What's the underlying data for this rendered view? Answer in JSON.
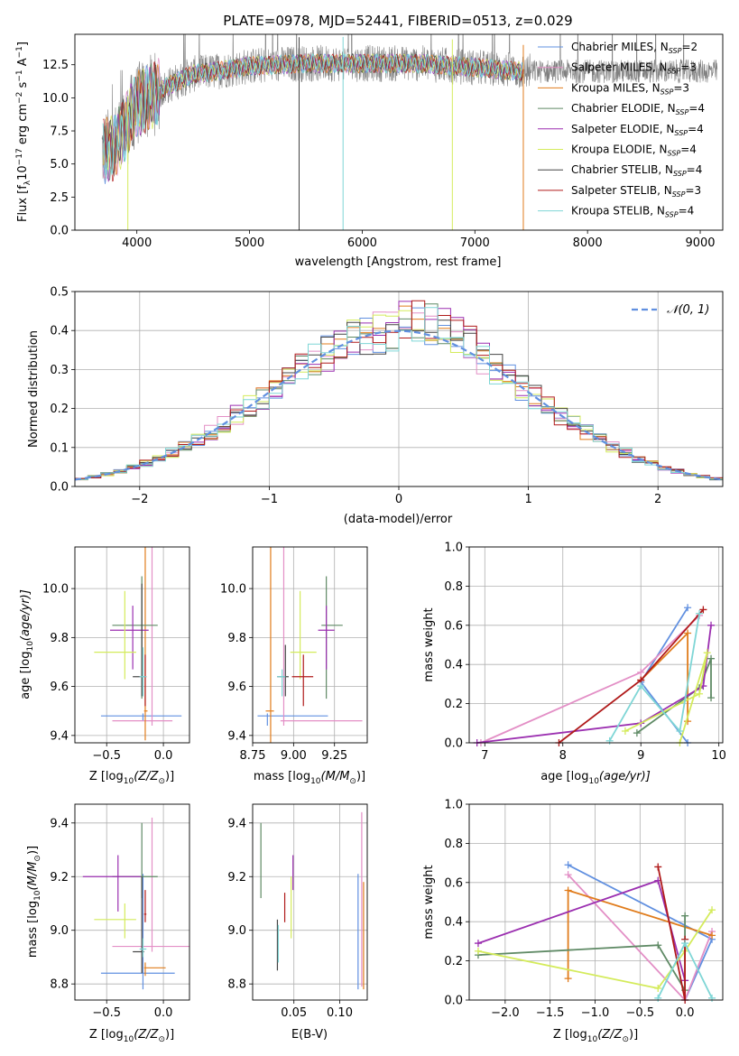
{
  "figure": {
    "title": "PLATE=0978, MJD=52441, FIBERID=0513, z=0.029"
  },
  "chart_data": [
    {
      "id": "spectrum",
      "type": "line",
      "xlabel": "wavelength [Angstrom, rest frame]",
      "ylabel": "Flux [f",
      "ylabel_parts": [
        "Flux [f",
        "λ",
        "10",
        "−17",
        " erg cm",
        "−2",
        " s",
        "−1",
        " A",
        "−1",
        "]"
      ],
      "xlim": [
        3450,
        9200
      ],
      "ylim": [
        0,
        14.8
      ],
      "xticks": [
        4000,
        5000,
        6000,
        7000,
        8000,
        9000
      ],
      "yticks": [
        0.0,
        2.5,
        5.0,
        7.5,
        10.0,
        12.5
      ],
      "ytick_labels": [
        "0.0",
        "2.5",
        "5.0",
        "7.5",
        "10.0",
        "12.5"
      ],
      "grid": false,
      "legend_position": "top-right",
      "legend": [
        {
          "name": "Chabrier MILES",
          "sub": "SSP",
          "n": "2",
          "color": "#6190e0"
        },
        {
          "name": "Salpeter MILES",
          "sub": "SSP",
          "n": "3",
          "color": "#e38fc6"
        },
        {
          "name": "Kroupa MILES",
          "sub": "SSP",
          "n": "3",
          "color": "#e07c1c"
        },
        {
          "name": "Chabrier ELODIE",
          "sub": "SSP",
          "n": "4",
          "color": "#5f8a65"
        },
        {
          "name": "Salpeter ELODIE",
          "sub": "SSP",
          "n": "4",
          "color": "#9b2fb0"
        },
        {
          "name": "Kroupa ELODIE",
          "sub": "SSP",
          "n": "4",
          "color": "#d4eb5b"
        },
        {
          "name": "Chabrier STELIB",
          "sub": "SSP",
          "n": "4",
          "color": "#444444"
        },
        {
          "name": "Salpeter STELIB",
          "sub": "SSP",
          "n": "3",
          "color": "#b01a1a"
        },
        {
          "name": "Kroupa STELIB",
          "sub": "SSP",
          "n": "4",
          "color": "#7fd6d6"
        }
      ],
      "continuum": [
        [
          3700,
          6.0
        ],
        [
          3800,
          6.2
        ],
        [
          3900,
          7.8
        ],
        [
          4000,
          9.5
        ],
        [
          4100,
          10.0
        ],
        [
          4300,
          11.0
        ],
        [
          4500,
          11.8
        ],
        [
          4700,
          12.0
        ],
        [
          5000,
          12.4
        ],
        [
          5500,
          12.6
        ],
        [
          6000,
          12.6
        ],
        [
          6500,
          12.6
        ],
        [
          7000,
          12.3
        ],
        [
          7400,
          12.0
        ]
      ],
      "model_range": [
        3700,
        7430
      ],
      "data_range": [
        3690,
        9150
      ],
      "spikes": [
        {
          "x": 5440,
          "y": 0.0,
          "color": "#444444"
        },
        {
          "x": 5830,
          "y": 0.0,
          "color": "#7fd6d6"
        },
        {
          "x": 6800,
          "y": 0.0,
          "color": "#d4eb5b"
        },
        {
          "x": 7430,
          "y": 0.0,
          "color": "#e07c1c"
        },
        {
          "x": 3920,
          "y": 0.0,
          "color": "#d4eb5b"
        }
      ]
    },
    {
      "id": "residuals",
      "type": "histogram",
      "xlabel": "(data-model)/error",
      "ylabel": "Normed distribution",
      "xlim": [
        -2.5,
        2.5
      ],
      "ylim": [
        0,
        0.5
      ],
      "xticks": [
        -2,
        -1,
        0,
        1,
        2
      ],
      "xtick_labels": [
        "−2",
        "−1",
        "0",
        "1",
        "2"
      ],
      "yticks": [
        0.0,
        0.1,
        0.2,
        0.3,
        0.4,
        0.5
      ],
      "ytick_labels": [
        "0.0",
        "0.1",
        "0.2",
        "0.3",
        "0.4",
        "0.5"
      ],
      "grid": true,
      "legend_position": "top-right",
      "legend": [
        {
          "name": "𝒩(0, 1)",
          "color": "#6190e0",
          "style": "dashed"
        }
      ],
      "bin_edges_start": -2.5,
      "bin_width": 0.1,
      "bins": 50
    },
    {
      "id": "z-age",
      "type": "scatter",
      "xlabel": "Z [log10(Z/Z⊙)]",
      "xlabel_parts": [
        "Z [log",
        "10",
        "(Z/Z",
        "⊙",
        ")]"
      ],
      "ylabel_parts": [
        "age  [log",
        "10",
        "(age/yr)]"
      ],
      "xlim": [
        -0.78,
        0.23
      ],
      "ylim": [
        9.37,
        10.17
      ],
      "xticks": [
        -0.5,
        0.0
      ],
      "xtick_labels": [
        "−0.5",
        "0.0"
      ],
      "yticks": [
        9.4,
        9.6,
        9.8,
        10.0
      ],
      "ytick_labels": [
        "9.4",
        "9.6",
        "9.8",
        "10.0"
      ],
      "grid": true,
      "points": [
        {
          "x": -0.18,
          "xerr": [
            0.37,
            0.34
          ],
          "y": 9.48,
          "yerr": [
            0.02,
            0.01
          ],
          "color": "#6190e0"
        },
        {
          "x": -0.1,
          "xerr": [
            0.35,
            0.18
          ],
          "y": 9.46,
          "yerr": [
            0.02,
            1.64
          ],
          "color": "#e38fc6"
        },
        {
          "x": -0.16,
          "xerr": [
            0.01,
            0.02
          ],
          "y": 9.5,
          "yerr": [
            0.12,
            1.55
          ],
          "color": "#e07c1c"
        },
        {
          "x": -0.19,
          "xerr": [
            0.26,
            0.14
          ],
          "y": 9.85,
          "yerr": [
            0.3,
            0.2
          ],
          "color": "#5f8a65"
        },
        {
          "x": -0.27,
          "xerr": [
            0.2,
            0.14
          ],
          "y": 9.83,
          "yerr": [
            0.16,
            0.1
          ],
          "color": "#9b2fb0"
        },
        {
          "x": -0.34,
          "xerr": [
            0.27,
            0.1
          ],
          "y": 9.74,
          "yerr": [
            0.11,
            0.25
          ],
          "color": "#d4eb5b"
        },
        {
          "x": -0.19,
          "xerr": [
            0.08,
            0.02
          ],
          "y": 9.64,
          "yerr": [
            0.08,
            0.38
          ],
          "color": "#444444"
        },
        {
          "x": -0.16,
          "xerr": [
            0.01,
            0.01
          ],
          "y": 9.64,
          "yerr": [
            0.12,
            0.09
          ],
          "color": "#b01a1a"
        },
        {
          "x": -0.18,
          "xerr": [
            0.03,
            0.03
          ],
          "y": 9.64,
          "yerr": [
            0.08,
            0.12
          ],
          "color": "#7fd6d6"
        }
      ]
    },
    {
      "id": "mass-age",
      "type": "scatter",
      "xlabel_parts": [
        "mass [log",
        "10",
        "(M/M",
        "⊙",
        ")]"
      ],
      "xlim": [
        8.75,
        9.45
      ],
      "ylim": [
        9.37,
        10.17
      ],
      "xticks": [
        8.75,
        9.0,
        9.25
      ],
      "xtick_labels": [
        "8.75",
        "9.00",
        "9.25"
      ],
      "yticks": [
        9.4,
        9.6,
        9.8,
        10.0
      ],
      "ytick_labels": [
        "9.4",
        "9.6",
        "9.8",
        "10.0"
      ],
      "grid": true,
      "points": [
        {
          "x": 8.84,
          "xerr": [
            0.06,
            0.37
          ],
          "y": 9.48,
          "yerr": [
            0.04,
            0.01
          ],
          "color": "#6190e0"
        },
        {
          "x": 8.94,
          "xerr": [
            0.02,
            0.48
          ],
          "y": 9.46,
          "yerr": [
            0.02,
            1.64
          ],
          "color": "#e38fc6"
        },
        {
          "x": 8.86,
          "xerr": [
            0.03,
            0.02
          ],
          "y": 9.5,
          "yerr": [
            0.15,
            1.55
          ],
          "color": "#e07c1c"
        },
        {
          "x": 9.2,
          "xerr": [
            0.03,
            0.1
          ],
          "y": 9.85,
          "yerr": [
            0.3,
            0.2
          ],
          "color": "#5f8a65"
        },
        {
          "x": 9.2,
          "xerr": [
            0.05,
            0.05
          ],
          "y": 9.83,
          "yerr": [
            0.16,
            0.1
          ],
          "color": "#9b2fb0"
        },
        {
          "x": 9.04,
          "xerr": [
            0.06,
            0.1
          ],
          "y": 9.74,
          "yerr": [
            0.11,
            0.25
          ],
          "color": "#d4eb5b"
        },
        {
          "x": 8.95,
          "xerr": [
            0.05,
            0.02
          ],
          "y": 9.64,
          "yerr": [
            0.08,
            0.13
          ],
          "color": "#444444"
        },
        {
          "x": 9.06,
          "xerr": [
            0.07,
            0.06
          ],
          "y": 9.64,
          "yerr": [
            0.12,
            0.09
          ],
          "color": "#b01a1a"
        },
        {
          "x": 8.93,
          "xerr": [
            0.03,
            0.02
          ],
          "y": 9.64,
          "yerr": [
            0.08,
            0.03
          ],
          "color": "#7fd6d6"
        }
      ]
    },
    {
      "id": "age-weight",
      "type": "line",
      "xlabel_parts": [
        "age  [log",
        "10",
        "(age/yr)]"
      ],
      "ylabel": "mass weight",
      "xlim": [
        6.8,
        10.05
      ],
      "ylim": [
        0,
        1.0
      ],
      "xticks": [
        7,
        8,
        9,
        10
      ],
      "xtick_labels": [
        "7",
        "8",
        "9",
        "10"
      ],
      "yticks": [
        0.0,
        0.2,
        0.4,
        0.6,
        0.8,
        1.0
      ],
      "ytick_labels": [
        "0.0",
        "0.2",
        "0.4",
        "0.6",
        "0.8",
        "1.0"
      ],
      "grid": true,
      "series": [
        {
          "color": "#6190e0",
          "x": [
            9.6,
            9.0,
            9.6
          ],
          "y": [
            0.69,
            0.31,
            0.0
          ]
        },
        {
          "color": "#e38fc6",
          "x": [
            6.95,
            9.0,
            9.75
          ],
          "y": [
            0.0,
            0.36,
            0.65
          ]
        },
        {
          "color": "#e07c1c",
          "x": [
            9.0,
            9.6,
            9.6
          ],
          "y": [
            0.32,
            0.56,
            0.11
          ]
        },
        {
          "color": "#5f8a65",
          "x": [
            8.95,
            9.75,
            9.9,
            9.9
          ],
          "y": [
            0.05,
            0.28,
            0.43,
            0.23
          ]
        },
        {
          "color": "#9b2fb0",
          "x": [
            6.9,
            9.0,
            9.8,
            9.9
          ],
          "y": [
            0.0,
            0.1,
            0.29,
            0.6
          ]
        },
        {
          "color": "#d4eb5b",
          "x": [
            8.8,
            9.75,
            9.85,
            9.5
          ],
          "y": [
            0.06,
            0.25,
            0.46,
            0.0
          ]
        },
        {
          "color": "#b01a1a",
          "x": [
            7.95,
            9.0,
            9.8
          ],
          "y": [
            0.0,
            0.32,
            0.68
          ]
        },
        {
          "color": "#7fd6d6",
          "x": [
            8.6,
            9.0,
            9.5,
            9.75
          ],
          "y": [
            0.01,
            0.29,
            0.06,
            0.66
          ]
        }
      ]
    },
    {
      "id": "z-mass",
      "type": "scatter",
      "xlabel_parts": [
        "Z [log",
        "10",
        "(Z/Z",
        "⊙",
        ")]"
      ],
      "ylabel_parts": [
        "mass [log",
        "10",
        "(M/M",
        "⊙",
        ")]"
      ],
      "xlim": [
        -0.78,
        0.23
      ],
      "ylim": [
        8.74,
        9.47
      ],
      "xticks": [
        -0.5,
        0.0
      ],
      "xtick_labels": [
        "−0.5",
        "0.0"
      ],
      "yticks": [
        8.8,
        9.0,
        9.2,
        9.4
      ],
      "ytick_labels": [
        "8.8",
        "9.0",
        "9.2",
        "9.4"
      ],
      "grid": true,
      "points": [
        {
          "x": -0.18,
          "xerr": [
            0.37,
            0.28
          ],
          "y": 8.84,
          "yerr": [
            0.06,
            0.37
          ],
          "color": "#6190e0"
        },
        {
          "x": -0.1,
          "xerr": [
            0.35,
            0.38
          ],
          "y": 8.94,
          "yerr": [
            0.02,
            0.48
          ],
          "color": "#e38fc6"
        },
        {
          "x": -0.16,
          "xerr": [
            0.01,
            0.18
          ],
          "y": 8.86,
          "yerr": [
            0.03,
            0.02
          ],
          "color": "#e07c1c"
        },
        {
          "x": -0.19,
          "xerr": [
            0.26,
            0.14
          ],
          "y": 9.2,
          "yerr": [
            0.08,
            0.2
          ],
          "color": "#5f8a65"
        },
        {
          "x": -0.4,
          "xerr": [
            0.31,
            0.2
          ],
          "y": 9.2,
          "yerr": [
            0.13,
            0.08
          ],
          "color": "#9b2fb0"
        },
        {
          "x": -0.34,
          "xerr": [
            0.27,
            0.1
          ],
          "y": 9.04,
          "yerr": [
            0.07,
            0.06
          ],
          "color": "#d4eb5b"
        },
        {
          "x": -0.19,
          "xerr": [
            0.08,
            0.02
          ],
          "y": 8.92,
          "yerr": [
            0.08,
            0.28
          ],
          "color": "#444444"
        },
        {
          "x": -0.16,
          "xerr": [
            0.01,
            0.01
          ],
          "y": 9.06,
          "yerr": [
            0.03,
            0.09
          ],
          "color": "#b01a1a"
        },
        {
          "x": -0.18,
          "xerr": [
            0.03,
            0.03
          ],
          "y": 8.93,
          "yerr": [
            0.03,
            0.04
          ],
          "color": "#7fd6d6"
        }
      ]
    },
    {
      "id": "ebv-mass",
      "type": "scatter",
      "xlabel": "E(B-V)",
      "xlim": [
        0.005,
        0.13
      ],
      "ylim": [
        8.74,
        9.47
      ],
      "xticks": [
        0.05,
        0.1
      ],
      "xtick_labels": [
        "0.05",
        "0.10"
      ],
      "yticks": [
        8.8,
        9.0,
        9.2,
        9.4
      ],
      "ytick_labels": [
        "8.8",
        "9.0",
        "9.2",
        "9.4"
      ],
      "grid": true,
      "points": [
        {
          "x": 0.12,
          "y": 8.84,
          "yerr": [
            0.06,
            0.37
          ],
          "color": "#6190e0"
        },
        {
          "x": 0.124,
          "y": 8.94,
          "yerr": [
            0.15,
            0.5
          ],
          "color": "#e38fc6"
        },
        {
          "x": 0.126,
          "y": 8.86,
          "yerr": [
            0.08,
            0.32
          ],
          "color": "#e07c1c"
        },
        {
          "x": 0.014,
          "y": 9.2,
          "yerr": [
            0.08,
            0.2
          ],
          "color": "#5f8a65"
        },
        {
          "x": 0.049,
          "y": 9.2,
          "yerr": [
            0.05,
            0.08
          ],
          "color": "#9b2fb0"
        },
        {
          "x": 0.047,
          "y": 9.04,
          "yerr": [
            0.07,
            0.16
          ],
          "color": "#d4eb5b"
        },
        {
          "x": 0.032,
          "y": 8.92,
          "yerr": [
            0.07,
            0.12
          ],
          "color": "#444444"
        },
        {
          "x": 0.04,
          "y": 9.06,
          "yerr": [
            0.03,
            0.08
          ],
          "color": "#b01a1a"
        },
        {
          "x": 0.033,
          "y": 8.93,
          "yerr": [
            0.05,
            0.09
          ],
          "color": "#7fd6d6"
        }
      ]
    },
    {
      "id": "z-weight",
      "type": "line",
      "xlabel_parts": [
        "Z [log",
        "10",
        "(Z/Z",
        "⊙",
        ")]"
      ],
      "ylabel": "mass weight",
      "xlim": [
        -2.4,
        0.42
      ],
      "ylim": [
        0,
        1.0
      ],
      "xticks": [
        -2.0,
        -1.5,
        -1.0,
        -0.5,
        0.0
      ],
      "xtick_labels": [
        "−2.0",
        "−1.5",
        "−1.0",
        "−0.5",
        "0.0"
      ],
      "yticks": [
        0.0,
        0.2,
        0.4,
        0.6,
        0.8,
        1.0
      ],
      "ytick_labels": [
        "0.0",
        "0.2",
        "0.4",
        "0.6",
        "0.8",
        "1.0"
      ],
      "grid": true,
      "series": [
        {
          "color": "#6190e0",
          "x": [
            -1.3,
            0.3,
            0.0
          ],
          "y": [
            0.69,
            0.31,
            0.0
          ]
        },
        {
          "color": "#e38fc6",
          "x": [
            -1.3,
            0.0,
            0.3
          ],
          "y": [
            0.64,
            0.0,
            0.35
          ]
        },
        {
          "color": "#e07c1c",
          "x": [
            -1.3,
            -1.3,
            0.3
          ],
          "y": [
            0.11,
            0.56,
            0.33
          ]
        },
        {
          "color": "#5f8a65",
          "x": [
            -2.3,
            -0.3,
            0.0,
            0.0
          ],
          "y": [
            0.23,
            0.28,
            0.05,
            0.43
          ]
        },
        {
          "color": "#9b2fb0",
          "x": [
            -2.3,
            -0.3,
            0.0
          ],
          "y": [
            0.29,
            0.61,
            0.1
          ]
        },
        {
          "color": "#d4eb5b",
          "x": [
            -2.3,
            -0.3,
            0.0,
            0.3
          ],
          "y": [
            0.25,
            0.06,
            0.25,
            0.46
          ]
        },
        {
          "color": "#b01a1a",
          "x": [
            -0.3,
            0.0,
            0.0
          ],
          "y": [
            0.68,
            0.0,
            0.31
          ]
        },
        {
          "color": "#7fd6d6",
          "x": [
            -0.3,
            0.0,
            0.3
          ],
          "y": [
            0.01,
            0.29,
            0.01
          ]
        }
      ]
    }
  ]
}
